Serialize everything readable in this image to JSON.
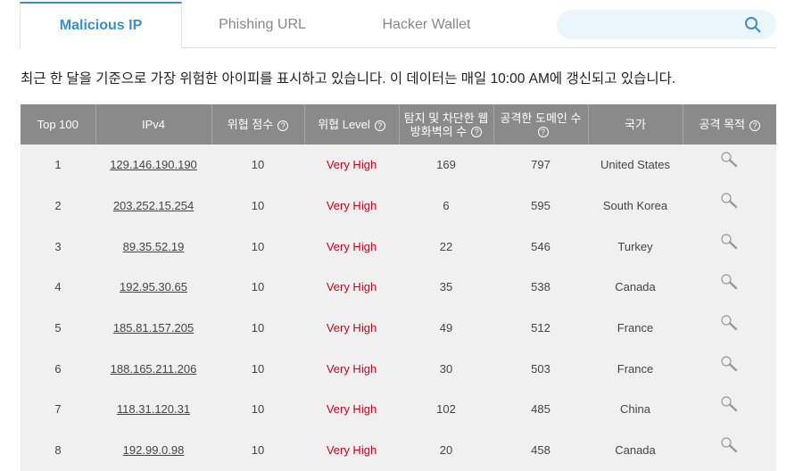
{
  "tabs": [
    {
      "label": "Malicious IP",
      "active": true
    },
    {
      "label": "Phishing URL",
      "active": false
    },
    {
      "label": "Hacker Wallet",
      "active": false
    }
  ],
  "search": {
    "placeholder": "",
    "icon": "search-icon"
  },
  "description": "최근 한 달을 기준으로 가장 위험한 아이피를 표시하고 있습니다. 이 데이터는 매일 10:00 AM에 갱신되고 있습니다.",
  "colors": {
    "accent": "#3a8fc9",
    "header_bg": "#8a8a8a",
    "very_high": "#d0021b"
  },
  "table": {
    "headers": [
      "Top 100",
      "IPv4",
      "위협 점수",
      "위협 Level",
      "탐지 및 차단한 웹방화벽의 수",
      "공격한 도메인 수",
      "국가",
      "공격 목적"
    ],
    "help_icon": "?",
    "rows": [
      {
        "rank": "1",
        "ip": "129.146.190.190",
        "score": "10",
        "level": "Very High",
        "waf": "169",
        "domains": "797",
        "country": "United States"
      },
      {
        "rank": "2",
        "ip": "203.252.15.254",
        "score": "10",
        "level": "Very High",
        "waf": "6",
        "domains": "595",
        "country": "South Korea"
      },
      {
        "rank": "3",
        "ip": "89.35.52.19",
        "score": "10",
        "level": "Very High",
        "waf": "22",
        "domains": "546",
        "country": "Turkey"
      },
      {
        "rank": "4",
        "ip": "192.95.30.65",
        "score": "10",
        "level": "Very High",
        "waf": "35",
        "domains": "538",
        "country": "Canada"
      },
      {
        "rank": "5",
        "ip": "185.81.157.205",
        "score": "10",
        "level": "Very High",
        "waf": "49",
        "domains": "512",
        "country": "France"
      },
      {
        "rank": "6",
        "ip": "188.165.211.206",
        "score": "10",
        "level": "Very High",
        "waf": "30",
        "domains": "503",
        "country": "France"
      },
      {
        "rank": "7",
        "ip": "118.31.120.31",
        "score": "10",
        "level": "Very High",
        "waf": "102",
        "domains": "485",
        "country": "China"
      },
      {
        "rank": "8",
        "ip": "192.99.0.98",
        "score": "10",
        "level": "Very High",
        "waf": "20",
        "domains": "458",
        "country": "Canada"
      }
    ]
  }
}
